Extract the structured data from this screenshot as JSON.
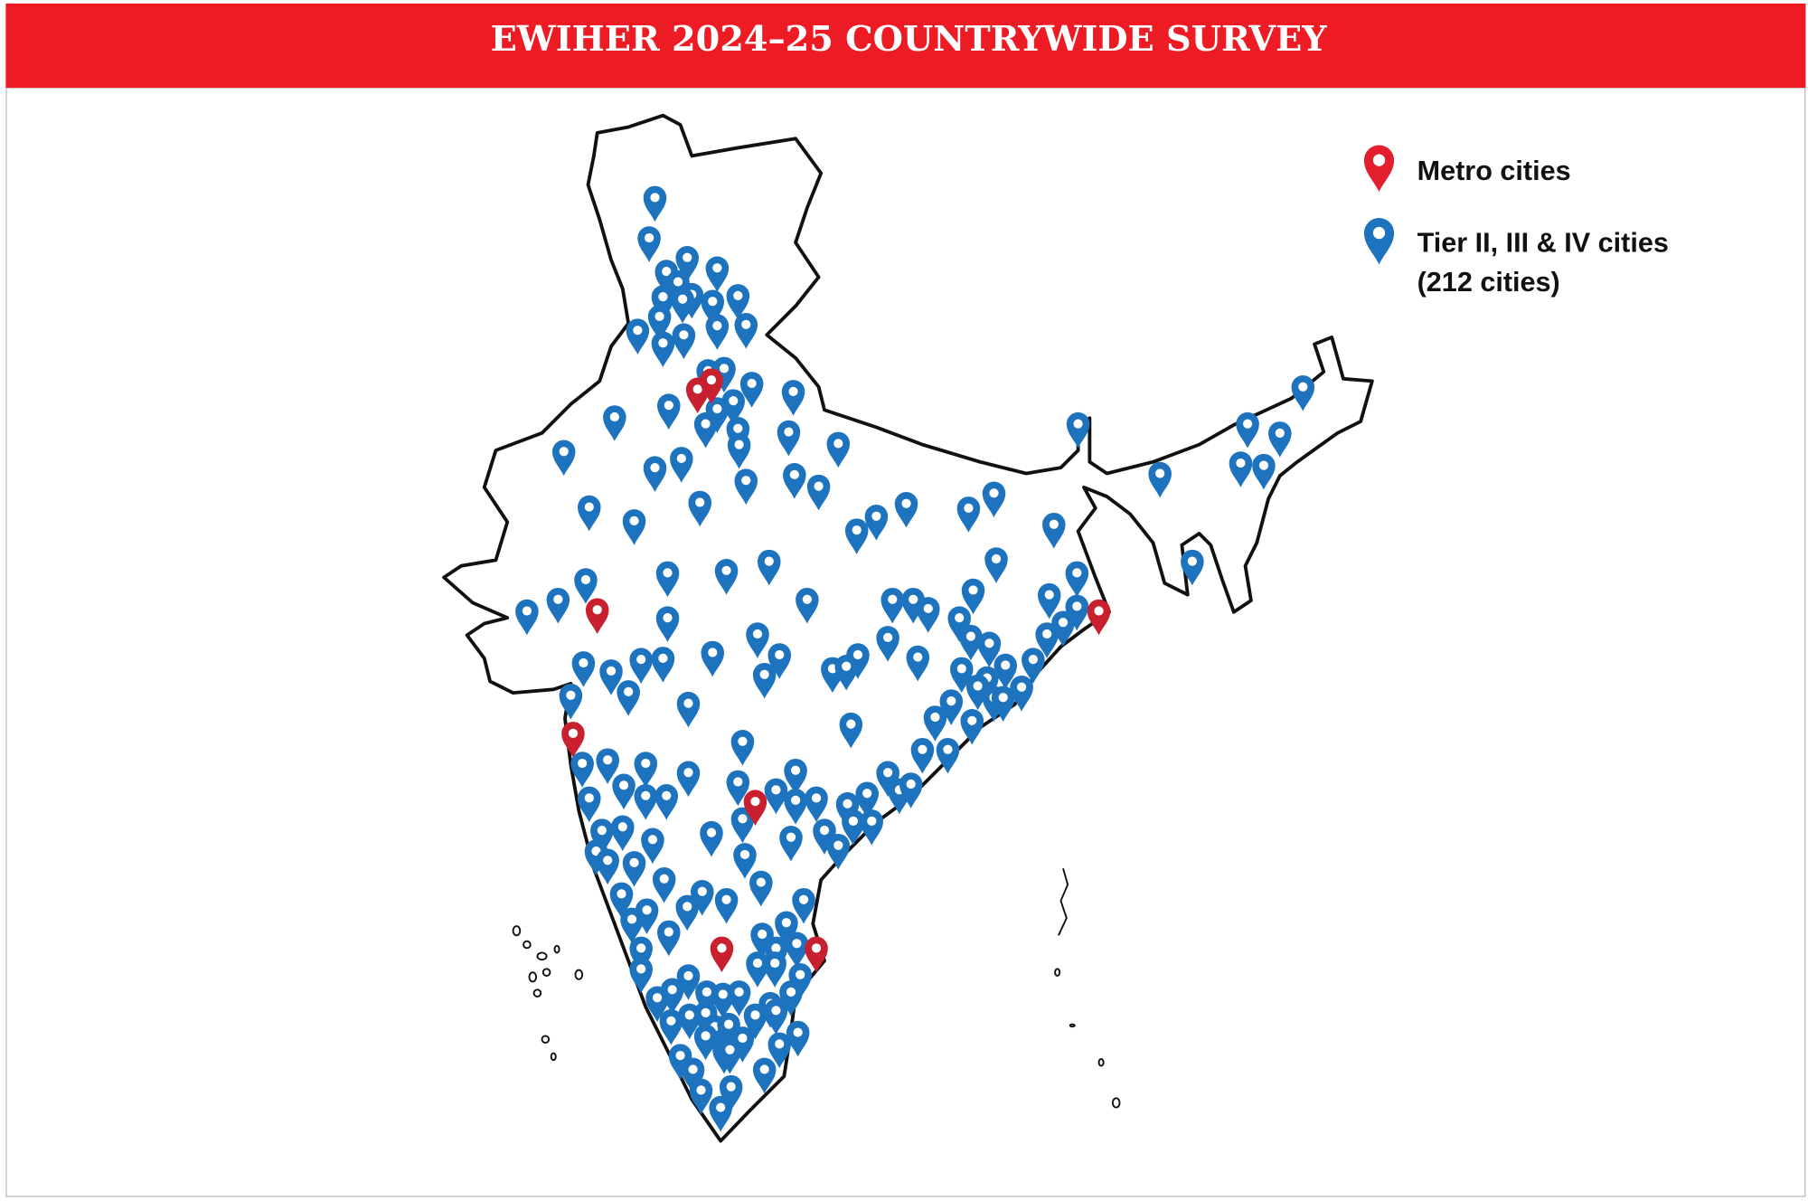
{
  "header": {
    "title": "EWIHER 2024–25 COUNTRYWIDE SURVEY"
  },
  "legend": {
    "items": [
      {
        "lines": [
          "Metro cities"
        ]
      },
      {
        "lines": [
          "Tier II, III & IV cities",
          "(212 cities)"
        ]
      }
    ]
  }
}
